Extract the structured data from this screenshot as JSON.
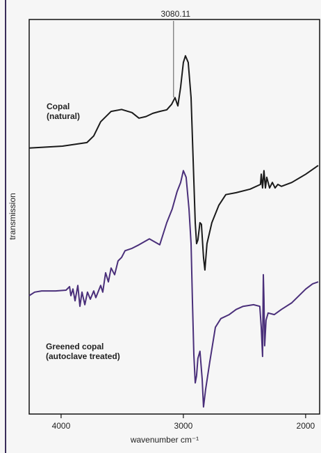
{
  "chart_data": {
    "type": "line",
    "xlabel": "wavenumber cm⁻¹",
    "ylabel": "transmission",
    "xlim": [
      4261,
      1897
    ],
    "ylim": [
      0,
      100
    ],
    "xticks": [
      4000,
      3000,
      2000
    ],
    "annotations": [
      {
        "text": "3080.11",
        "x": 3080.11
      }
    ],
    "series": [
      {
        "label": [
          "Copal",
          "(natural)"
        ],
        "color": "#1a1a1a",
        "x": [
          4261,
          3988,
          3789,
          3733,
          3676,
          3591,
          3505,
          3420,
          3363,
          3306,
          3250,
          3193,
          3136,
          3096,
          3068,
          3045,
          3022,
          3000,
          2983,
          2960,
          2937,
          2920,
          2903,
          2892,
          2881,
          2864,
          2852,
          2835,
          2824,
          2807,
          2767,
          2710,
          2653,
          2568,
          2454,
          2369,
          2363,
          2352,
          2341,
          2329,
          2318,
          2295,
          2272,
          2250,
          2227,
          2198,
          2113,
          1999,
          1897
        ],
        "values": [
          67.4,
          67.9,
          68.8,
          70.5,
          74.1,
          76.7,
          77.2,
          76.4,
          75.0,
          75.4,
          76.2,
          76.7,
          77.1,
          78.5,
          80.2,
          78.1,
          82.9,
          89.1,
          90.8,
          89.1,
          80.2,
          64.4,
          48.5,
          43.2,
          44.1,
          48.5,
          48.1,
          39.7,
          36.5,
          43.2,
          48.5,
          52.9,
          55.6,
          56.1,
          57.0,
          58.2,
          60.8,
          57.3,
          61.7,
          57.3,
          60.0,
          57.3,
          58.7,
          57.3,
          58.2,
          57.7,
          58.7,
          60.8,
          63.0
        ]
      },
      {
        "label": [
          "Greened copal",
          "(autoclave treated)"
        ],
        "color": "#4a2f7a",
        "x": [
          4261,
          4216,
          4159,
          4045,
          3960,
          3931,
          3920,
          3903,
          3886,
          3863,
          3846,
          3829,
          3806,
          3784,
          3761,
          3733,
          3716,
          3676,
          3659,
          3636,
          3613,
          3591,
          3562,
          3534,
          3505,
          3477,
          3420,
          3363,
          3278,
          3238,
          3193,
          3136,
          3091,
          3051,
          3022,
          3000,
          2977,
          2954,
          2937,
          2926,
          2914,
          2903,
          2892,
          2881,
          2864,
          2846,
          2835,
          2818,
          2784,
          2738,
          2693,
          2625,
          2568,
          2511,
          2426,
          2375,
          2363,
          2352,
          2346,
          2341,
          2335,
          2324,
          2307,
          2256,
          2198,
          2113,
          1999,
          1943,
          1897
        ],
        "values": [
          30.0,
          30.9,
          31.2,
          31.2,
          31.4,
          32.3,
          30.0,
          31.7,
          28.7,
          32.6,
          27.3,
          30.9,
          27.7,
          30.9,
          29.1,
          31.2,
          29.5,
          32.6,
          30.9,
          35.8,
          33.5,
          37.0,
          35.3,
          38.8,
          39.7,
          41.4,
          42.0,
          42.9,
          44.4,
          43.7,
          42.9,
          48.5,
          52.0,
          56.4,
          58.7,
          61.7,
          60.0,
          52.0,
          43.2,
          29.1,
          15.0,
          7.9,
          9.7,
          14.1,
          15.9,
          8.8,
          1.8,
          6.2,
          13.2,
          22.0,
          24.2,
          25.2,
          26.5,
          27.3,
          27.7,
          27.3,
          22.0,
          14.6,
          35.3,
          29.1,
          17.3,
          23.8,
          25.6,
          25.2,
          26.5,
          28.2,
          31.7,
          33.0,
          33.5
        ]
      }
    ]
  }
}
